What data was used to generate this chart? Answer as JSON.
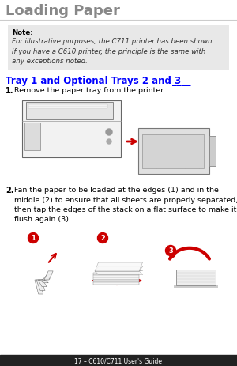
{
  "bg_color": "#ffffff",
  "outer_bg": "#000000",
  "title": "Loading Paper",
  "title_color": "#888888",
  "title_fontsize": 13,
  "rule_color": "#cccccc",
  "note_bg": "#e8e8e8",
  "note_title": "Note:",
  "note_text": "For illustrative purposes, the C711 printer has been shown.\nIf you have a C610 printer, the principle is the same with\nany exceptions noted.",
  "note_fontsize": 6.2,
  "section_title": "Tray 1 and Optional Trays 2 and 3",
  "section_underline": "____",
  "section_title_color": "#0000ff",
  "section_title_fontsize": 8.5,
  "step1_num": "1.",
  "step1_text": "Remove the paper tray from the printer.",
  "step2_num": "2.",
  "step2_text": "Fan the paper to be loaded at the edges (1) and in the\nmiddle (2) to ensure that all sheets are properly separated,\nthen tap the edges of the stack on a flat surface to make it\nflush again (3).",
  "step_numsize": 7,
  "step_textsize": 6.8,
  "footer_text": "17 – C610/C711 User's Guide",
  "footer_fontsize": 5.5,
  "red": "#cc0000",
  "dark_footer_bg": "#222222"
}
